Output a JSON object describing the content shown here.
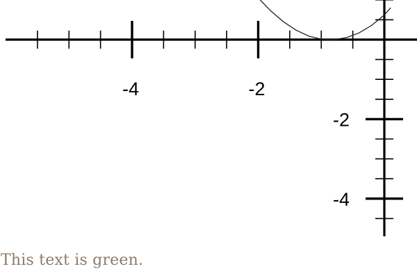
{
  "chart_data": {
    "type": "line",
    "title": "",
    "xlabel": "",
    "ylabel": "",
    "xlim": [
      -5.9,
      0.3
    ],
    "ylim": [
      -5.7,
      1.1
    ],
    "x_tick_labels": [
      {
        "value": -4,
        "label": "-4"
      },
      {
        "value": -2,
        "label": "-2"
      }
    ],
    "y_tick_labels": [
      {
        "value": -2,
        "label": "-2"
      },
      {
        "value": -4,
        "label": "-4"
      }
    ],
    "major_tick_step": 2,
    "minor_tick_step": 0.5,
    "grid": false,
    "series": [
      {
        "color": "#222222",
        "points": [
          {
            "x": -2.0,
            "y": 1.05
          },
          {
            "x": -1.8,
            "y": 0.72
          },
          {
            "x": -1.6,
            "y": 0.45
          },
          {
            "x": -1.4,
            "y": 0.24
          },
          {
            "x": -1.2,
            "y": 0.09
          },
          {
            "x": -1.0,
            "y": 0.01
          },
          {
            "x": -0.8,
            "y": 0.0
          },
          {
            "x": -0.6,
            "y": 0.05
          },
          {
            "x": -0.4,
            "y": 0.17
          },
          {
            "x": -0.2,
            "y": 0.36
          },
          {
            "x": 0.0,
            "y": 0.62
          },
          {
            "x": 0.1,
            "y": 0.8
          }
        ]
      }
    ]
  },
  "caption": {
    "text": "This text is green.",
    "color": "#8b7b6b"
  }
}
